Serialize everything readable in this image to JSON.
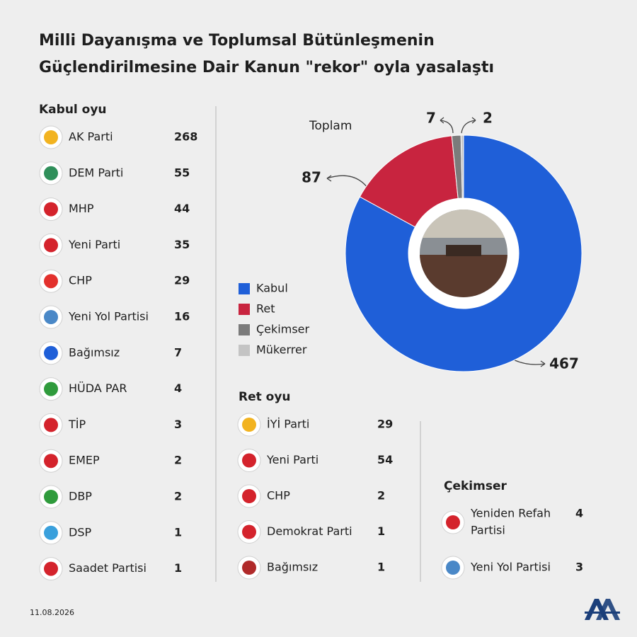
{
  "title": [
    "Milli Dayanışma ve Toplumsal Bütünleşmenin",
    "Güçlendirilmesine Dair Kanun \"rekor\" oyla yasalaştı"
  ],
  "kabul": {
    "heading": "Kabul oyu",
    "parties": [
      {
        "name": "AK Parti",
        "votes": "268"
      },
      {
        "name": "DEM Parti",
        "votes": "55"
      },
      {
        "name": "MHP",
        "votes": "44"
      },
      {
        "name": "Yeni Parti",
        "votes": "35"
      },
      {
        "name": "CHP",
        "votes": "29"
      },
      {
        "name": "Yeni Yol Partisi",
        "votes": "16"
      },
      {
        "name": "Bağımsız",
        "votes": "7"
      },
      {
        "name": "HÜDA PAR",
        "votes": "4"
      },
      {
        "name": "TİP",
        "votes": "3"
      },
      {
        "name": "EMEP",
        "votes": "2"
      },
      {
        "name": "DBP",
        "votes": "2"
      },
      {
        "name": "DSP",
        "votes": "1"
      },
      {
        "name": "Saadet Partisi",
        "votes": "1"
      }
    ]
  },
  "ret": {
    "heading": "Ret oyu",
    "parties": [
      {
        "name": "İYİ Parti",
        "votes": "29"
      },
      {
        "name": "Yeni Parti",
        "votes": "54"
      },
      {
        "name": "CHP",
        "votes": "2"
      },
      {
        "name": "Demokrat Parti",
        "votes": "1"
      },
      {
        "name": "Bağımsız",
        "votes": "1"
      }
    ]
  },
  "cekimser": {
    "heading": "Çekimser",
    "parties": [
      {
        "name": [
          "Yeniden Refah",
          "Partisi"
        ],
        "votes": "4"
      },
      {
        "name": "Yeni Yol Partisi",
        "votes": "3"
      }
    ]
  },
  "date": "11.08.2026",
  "chart_data": {
    "type": "donut",
    "label": "Toplam",
    "categories": [
      "Kabul",
      "Ret",
      "Çekimser",
      "Mükerrer"
    ],
    "values": [
      467,
      87,
      7,
      2
    ],
    "colors": [
      "#1f5fd8",
      "#c8243f",
      "#7b7b7b",
      "#c4c4c4"
    ]
  }
}
